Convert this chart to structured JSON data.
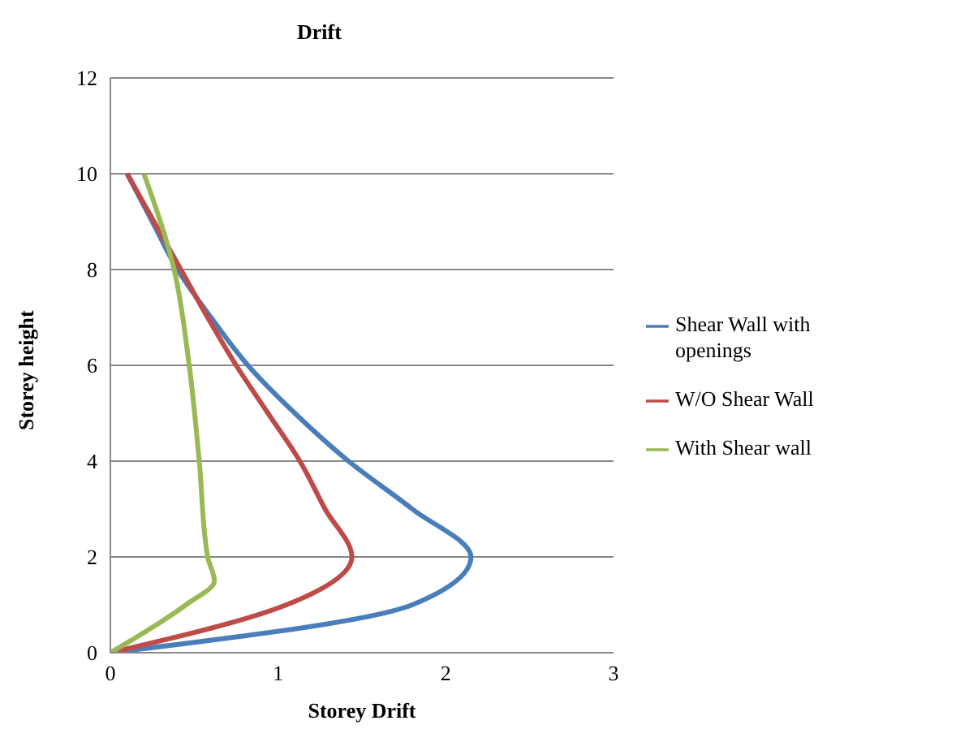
{
  "chart_data": {
    "type": "line",
    "title": "Drift",
    "xlabel": "Storey Drift",
    "ylabel": "Storey height",
    "xlim": [
      0,
      3
    ],
    "xticks": [
      0,
      1,
      2,
      3
    ],
    "ylim": [
      0,
      12
    ],
    "yticks": [
      0,
      2,
      4,
      6,
      8,
      10,
      12
    ],
    "grid": "y",
    "legend": "right",
    "marker": "none",
    "line_style": "solid",
    "series": [
      {
        "name": "Shear Wall with openings",
        "color": "#4a7ebb",
        "x": [
          0,
          1.8,
          2.15,
          1.8,
          1.42,
          1.1,
          0.82,
          0.6,
          0.4,
          0.25,
          0.1
        ],
        "values": [
          0,
          1,
          2,
          3,
          4,
          5,
          6,
          7,
          8,
          9,
          10
        ]
      },
      {
        "name": "W/O Shear Wall",
        "color": "#be4b48",
        "x": [
          0,
          1.05,
          1.44,
          1.28,
          1.13,
          0.94,
          0.75,
          0.58,
          0.42,
          0.26,
          0.1
        ],
        "values": [
          0,
          1,
          2,
          3,
          4,
          5,
          6,
          7,
          8,
          9,
          10
        ]
      },
      {
        "name": "With Shear wall",
        "color": "#98b954",
        "x": [
          0,
          0.45,
          0.62,
          0.58,
          0.53,
          0.47,
          0.38,
          0.2
        ],
        "values": [
          0,
          1,
          1.5,
          2,
          4,
          6,
          8,
          10
        ]
      }
    ]
  }
}
